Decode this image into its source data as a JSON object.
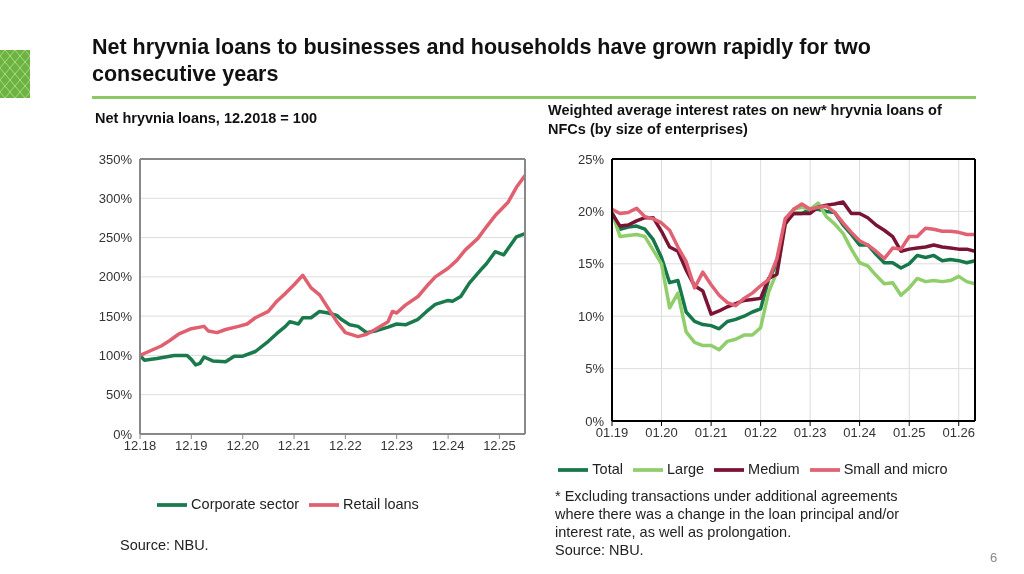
{
  "chart_data": [
    {
      "type": "line",
      "title": "Net hryvnia loans to businesses and households have grown rapidly for two consecutive years",
      "subtitle": "Net hryvnia loans, 12.2018 = 100",
      "series": [
        {
          "name": "Corporate sector",
          "color": "#1a7a4c",
          "x": [
            "2018-12",
            "2019-01",
            "2019-04",
            "2019-06",
            "2019-08",
            "2019-11",
            "2019-12",
            "2020-01",
            "2020-02",
            "2020-03",
            "2020-05",
            "2020-08",
            "2020-10",
            "2020-12",
            "2021-03",
            "2021-06",
            "2021-08",
            "2021-10",
            "2021-11",
            "2022-01",
            "2022-02",
            "2022-04",
            "2022-06",
            "2022-08",
            "2022-10",
            "2022-11",
            "2023-01",
            "2023-03",
            "2023-05",
            "2023-07",
            "2023-10",
            "2023-12",
            "2024-02",
            "2024-05",
            "2024-07",
            "2024-09",
            "2024-12",
            "2025-01",
            "2025-03",
            "2025-05",
            "2025-08",
            "2025-09",
            "2025-11",
            "2026-01",
            "2026-02",
            "2026-04",
            "2026-06"
          ],
          "values": [
            100,
            94,
            96,
            98,
            100,
            100,
            95,
            88,
            90,
            98,
            93,
            92,
            99,
            99,
            105,
            118,
            128,
            137,
            143,
            140,
            148,
            148,
            156,
            154,
            151,
            146,
            139,
            137,
            129,
            131,
            136,
            140,
            139,
            146,
            156,
            165,
            170,
            169,
            175,
            192,
            211,
            217,
            232,
            228,
            236,
            251,
            255
          ]
        },
        {
          "name": "Retail loans",
          "color": "#e0606f",
          "x": [
            "2018-12",
            "2019-02",
            "2019-05",
            "2019-07",
            "2019-09",
            "2019-12",
            "2020-03",
            "2020-04",
            "2020-06",
            "2020-08",
            "2020-11",
            "2021-01",
            "2021-03",
            "2021-06",
            "2021-08",
            "2021-10",
            "2021-12",
            "2022-02",
            "2022-04",
            "2022-06",
            "2022-08",
            "2022-10",
            "2022-12",
            "2023-03",
            "2023-05",
            "2023-07",
            "2023-10",
            "2023-11",
            "2023-12",
            "2024-02",
            "2024-05",
            "2024-07",
            "2024-09",
            "2024-12",
            "2025-02",
            "2025-04",
            "2025-07",
            "2025-09",
            "2025-11",
            "2026-02",
            "2026-04",
            "2026-06"
          ],
          "values": [
            100,
            105,
            112,
            119,
            127,
            134,
            137,
            131,
            129,
            133,
            137,
            140,
            148,
            156,
            169,
            179,
            190,
            202,
            186,
            177,
            160,
            143,
            129,
            124,
            127,
            133,
            143,
            156,
            154,
            164,
            175,
            188,
            200,
            211,
            221,
            234,
            249,
            264,
            278,
            295,
            314,
            329
          ]
        }
      ],
      "xlim": [
        "2018-12",
        "2026-06"
      ],
      "xticks": [
        {
          "value": "2018-12",
          "label": "12.18"
        },
        {
          "value": "2019-12",
          "label": "12.19"
        },
        {
          "value": "2020-12",
          "label": "12.20"
        },
        {
          "value": "2021-12",
          "label": "12.21"
        },
        {
          "value": "2022-12",
          "label": "12.22"
        },
        {
          "value": "2023-12",
          "label": "12.23"
        },
        {
          "value": "2024-12",
          "label": "12.24"
        },
        {
          "value": "2025-12",
          "label": "12.25"
        }
      ],
      "ylim": [
        0,
        350
      ],
      "yticks": [
        {
          "value": 0,
          "label": "0%"
        },
        {
          "value": 50,
          "label": "50%"
        },
        {
          "value": 100,
          "label": "100%"
        },
        {
          "value": 150,
          "label": "150%"
        },
        {
          "value": 200,
          "label": "200%"
        },
        {
          "value": 250,
          "label": "250%"
        },
        {
          "value": 300,
          "label": "300%"
        },
        {
          "value": 350,
          "label": "350%"
        }
      ],
      "grid": "y",
      "legend": "bottom",
      "annotations": [
        "Source: NBU."
      ]
    },
    {
      "type": "line",
      "title": "Weighted average interest rates on new* hryvnia loans of NFCs (by size of enterprises)",
      "x": [
        "2019-01",
        "2019-03",
        "2019-05",
        "2019-07",
        "2019-09",
        "2019-11",
        "2020-01",
        "2020-03",
        "2020-05",
        "2020-07",
        "2020-09",
        "2020-11",
        "2021-01",
        "2021-03",
        "2021-05",
        "2021-07",
        "2021-09",
        "2021-11",
        "2022-01",
        "2022-03",
        "2022-05",
        "2022-07",
        "2022-09",
        "2022-11",
        "2023-01",
        "2023-03",
        "2023-05",
        "2023-07",
        "2023-09",
        "2023-11",
        "2024-01",
        "2024-03",
        "2024-05",
        "2024-07",
        "2024-09",
        "2024-11",
        "2025-01",
        "2025-03",
        "2025-05",
        "2025-07",
        "2025-09",
        "2025-11",
        "2026-01",
        "2026-03",
        "2026-05"
      ],
      "series": [
        {
          "name": "Total",
          "color": "#16774a",
          "values": [
            19.9,
            18.3,
            18.5,
            18.6,
            18.3,
            17.3,
            15.6,
            13.2,
            13.4,
            10.4,
            9.5,
            9.2,
            9.1,
            8.8,
            9.5,
            9.7,
            10.0,
            10.4,
            10.7,
            13.5,
            15.0,
            19.0,
            19.8,
            19.8,
            20.2,
            20.2,
            20.0,
            19.9,
            18.7,
            17.8,
            16.8,
            16.8,
            15.9,
            15.1,
            15.1,
            14.6,
            15.0,
            15.8,
            15.6,
            15.8,
            15.3,
            15.4,
            15.3,
            15.1,
            15.3
          ]
        },
        {
          "name": "Large",
          "color": "#8fce6b",
          "values": [
            19.9,
            17.6,
            17.7,
            17.8,
            17.6,
            16.3,
            15.0,
            10.8,
            12.2,
            8.5,
            7.5,
            7.2,
            7.2,
            6.8,
            7.6,
            7.8,
            8.2,
            8.2,
            8.9,
            12.3,
            14.2,
            18.7,
            20.2,
            20.4,
            20.2,
            20.8,
            19.5,
            18.8,
            17.9,
            16.4,
            15.1,
            14.8,
            13.9,
            13.1,
            13.2,
            12.0,
            12.7,
            13.6,
            13.3,
            13.4,
            13.3,
            13.4,
            13.8,
            13.3,
            13.1
          ]
        },
        {
          "name": "Medium",
          "color": "#7a1434",
          "values": [
            19.8,
            18.6,
            18.7,
            19.1,
            19.4,
            19.4,
            18.1,
            16.6,
            16.2,
            14.4,
            12.9,
            12.4,
            10.2,
            10.5,
            10.9,
            11.2,
            11.5,
            11.6,
            11.7,
            13.6,
            14.0,
            18.8,
            19.8,
            19.8,
            19.8,
            20.4,
            20.6,
            20.7,
            20.9,
            19.8,
            19.8,
            19.4,
            18.7,
            18.2,
            17.6,
            16.2,
            16.4,
            16.5,
            16.6,
            16.8,
            16.6,
            16.5,
            16.4,
            16.4,
            16.2
          ]
        },
        {
          "name": "Small and micro",
          "color": "#e06273",
          "values": [
            20.2,
            19.8,
            19.9,
            20.3,
            19.5,
            19.3,
            18.9,
            18.2,
            16.6,
            15.2,
            12.7,
            14.2,
            13.0,
            12.0,
            11.3,
            11.0,
            11.7,
            12.2,
            12.9,
            13.5,
            15.5,
            19.3,
            20.2,
            20.7,
            20.2,
            20.4,
            20.5,
            19.9,
            18.9,
            18.0,
            17.2,
            16.8,
            16.2,
            15.5,
            16.5,
            16.4,
            17.6,
            17.6,
            18.4,
            18.3,
            18.1,
            18.1,
            18.0,
            17.8,
            17.8
          ]
        }
      ],
      "xlim": [
        "2019-01",
        "2026-05"
      ],
      "xticks": [
        {
          "value": "2019-01",
          "label": "01.19"
        },
        {
          "value": "2020-01",
          "label": "01.20"
        },
        {
          "value": "2021-01",
          "label": "01.21"
        },
        {
          "value": "2022-01",
          "label": "01.22"
        },
        {
          "value": "2023-01",
          "label": "01.23"
        },
        {
          "value": "2024-01",
          "label": "01.24"
        },
        {
          "value": "2025-01",
          "label": "01.25"
        },
        {
          "value": "2026-01",
          "label": "01.26"
        }
      ],
      "ylim": [
        0,
        25
      ],
      "yticks": [
        {
          "value": 0,
          "label": "0%"
        },
        {
          "value": 5,
          "label": "5%"
        },
        {
          "value": 10,
          "label": "10%"
        },
        {
          "value": 15,
          "label": "15%"
        },
        {
          "value": 20,
          "label": "20%"
        },
        {
          "value": 25,
          "label": "25%"
        }
      ],
      "grid": true,
      "legend": "bottom",
      "annotations": [
        "* Excluding transactions under additional agreements where there was a change in the loan principal and/or interest rate, as well as prolongation.",
        "Source: NBU.",
        "6"
      ]
    }
  ]
}
